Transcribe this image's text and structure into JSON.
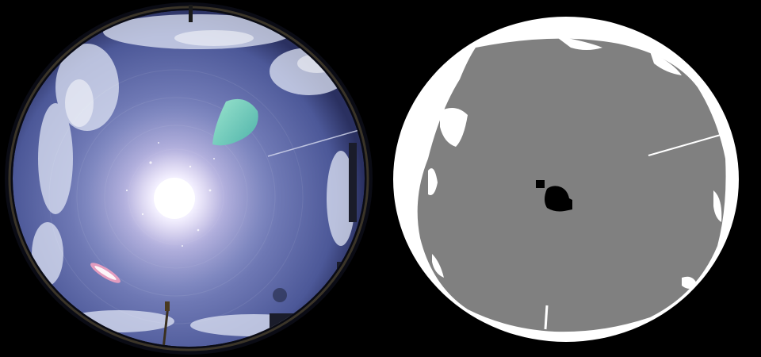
{
  "figure": {
    "panels": [
      {
        "id": "sky-photo",
        "kind": "fisheye-sky-image"
      },
      {
        "id": "cloud-mask",
        "kind": "segmentation-mask"
      }
    ],
    "colors": {
      "background": "#000000",
      "sky_center": "#d8d8f0",
      "sky_mid": "#6f7bb8",
      "sky_edge": "#3c4680",
      "sun": "#ffffff",
      "lens_flare": "#7fd6b8",
      "mask_clear_sky": "#808080",
      "mask_cloud": "#ffffff",
      "mask_sun": "#000000"
    }
  }
}
